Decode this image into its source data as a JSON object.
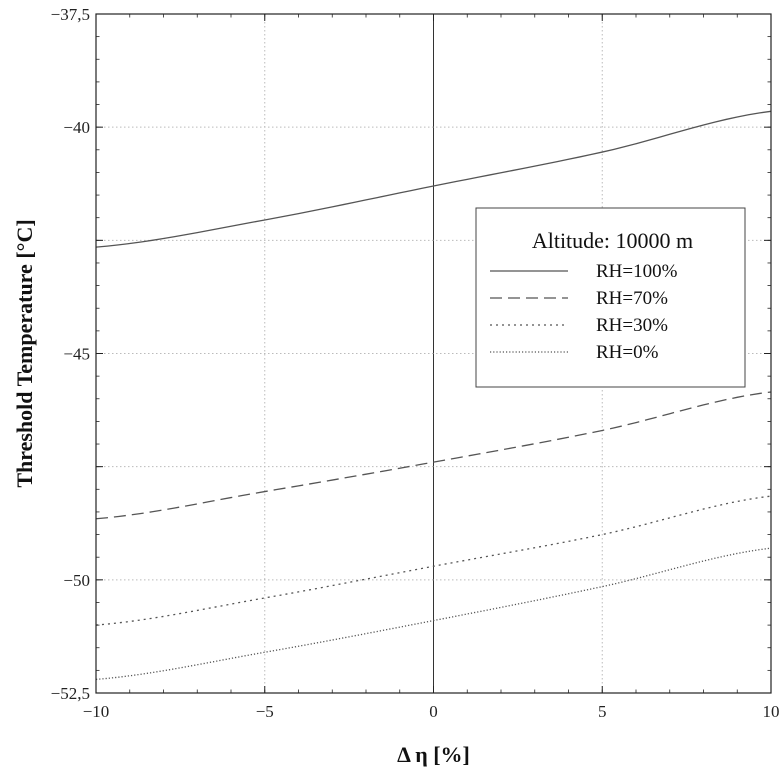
{
  "chart_data": {
    "type": "line",
    "xlabel": "Δ η [%]",
    "ylabel": "Threshold Temperature [°C]",
    "xlim": [
      -10,
      10
    ],
    "ylim": [
      -52.5,
      -37.5
    ],
    "x_ticks": [
      -10,
      -5,
      0,
      5,
      10
    ],
    "x_tick_labels": [
      "−10",
      "−5",
      "0",
      "5",
      "10"
    ],
    "y_ticks": [
      -52.5,
      -50,
      -47.5,
      -45,
      -42.5,
      -40,
      -37.5
    ],
    "y_tick_labels": [
      "−52,5",
      "−50",
      "",
      "−45",
      "",
      "−40",
      "−37,5"
    ],
    "grid": true,
    "legend": {
      "title": "Altitude: 10000 m",
      "placement": "right",
      "entries": [
        "RH=100%",
        "RH=70%",
        "RH=30%",
        "RH=0%"
      ]
    },
    "x": [
      -10,
      -5,
      0,
      5,
      10
    ],
    "series": [
      {
        "name": "RH=100%",
        "style": "solid",
        "color": "#555555",
        "values": [
          -42.65,
          -42.05,
          -41.3,
          -40.55,
          -39.65
        ]
      },
      {
        "name": "RH=70%",
        "style": "dashed",
        "color": "#555555",
        "values": [
          -48.65,
          -48.05,
          -47.4,
          -46.7,
          -45.85
        ]
      },
      {
        "name": "RH=30%",
        "style": "dotted",
        "color": "#555555",
        "values": [
          -51.0,
          -50.4,
          -49.7,
          -49.0,
          -48.15
        ]
      },
      {
        "name": "RH=0%",
        "style": "densedot",
        "color": "#555555",
        "values": [
          -52.2,
          -51.6,
          -50.9,
          -50.15,
          -49.3
        ]
      }
    ]
  }
}
